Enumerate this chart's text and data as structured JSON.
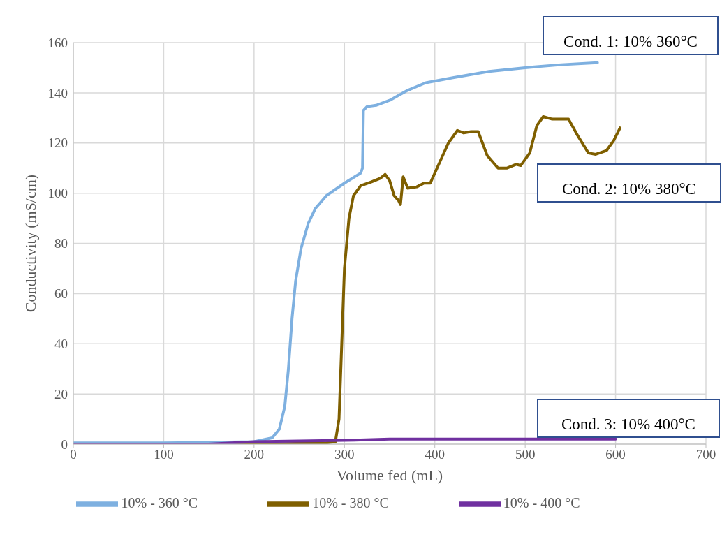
{
  "chart_data": {
    "type": "line",
    "xlabel": "Volume fed (mL)",
    "ylabel": "Conductivity (mS/cm)",
    "xlim": [
      0,
      700
    ],
    "xticks": [
      0,
      100,
      200,
      300,
      400,
      500,
      600,
      700
    ],
    "ylim": [
      0,
      160
    ],
    "yticks": [
      0,
      20,
      40,
      60,
      80,
      100,
      120,
      140,
      160
    ],
    "grid": true,
    "legend": "bottom",
    "marker": "none",
    "line_style": "solid",
    "annotations": [
      "Cond. 1: 10% 360°C",
      "Cond. 2: 10% 380°C",
      "Cond. 3: 10% 400°C"
    ],
    "series": [
      {
        "name": "10% - 360 °C",
        "color": "#7eb0e0",
        "x": [
          0,
          100,
          200,
          220,
          228,
          234,
          238,
          242,
          246,
          252,
          260,
          268,
          280,
          300,
          318,
          320,
          321,
          325,
          335,
          350,
          370,
          390,
          420,
          460,
          500,
          540,
          580
        ],
        "values": [
          0.5,
          0.5,
          1,
          2.5,
          6,
          15,
          30,
          50,
          65,
          78,
          88,
          94,
          99,
          104,
          108,
          110,
          133,
          134.5,
          135,
          137,
          141,
          144,
          146,
          148.5,
          150,
          151.2,
          152
        ]
      },
      {
        "name": "10% - 380 °C",
        "color": "#7f5f00",
        "x": [
          0,
          200,
          280,
          290,
          294,
          297,
          300,
          305,
          310,
          318,
          330,
          340,
          345,
          350,
          355,
          360,
          362,
          365,
          370,
          380,
          388,
          395,
          405,
          415,
          425,
          432,
          440,
          448,
          458,
          470,
          480,
          490,
          495,
          505,
          513,
          520,
          530,
          540,
          548,
          558,
          570,
          578,
          590,
          598,
          605
        ],
        "values": [
          0,
          0,
          0.5,
          1,
          10,
          40,
          70,
          90,
          99,
          103,
          104.5,
          106,
          107.5,
          105,
          99,
          97,
          95.5,
          106.5,
          102,
          102.5,
          104,
          104,
          112,
          120,
          125,
          124,
          124.5,
          124.5,
          115,
          110,
          110,
          111.5,
          111,
          116,
          127,
          130.5,
          129.5,
          129.5,
          129.5,
          123,
          116,
          115.5,
          117,
          121,
          126
        ]
      },
      {
        "name": "10% - 400 °C",
        "color": "#7030a0",
        "x": [
          0,
          150,
          200,
          300,
          350,
          450,
          550,
          600
        ],
        "values": [
          0,
          0,
          1,
          1.5,
          2,
          2,
          2,
          2
        ]
      }
    ]
  }
}
